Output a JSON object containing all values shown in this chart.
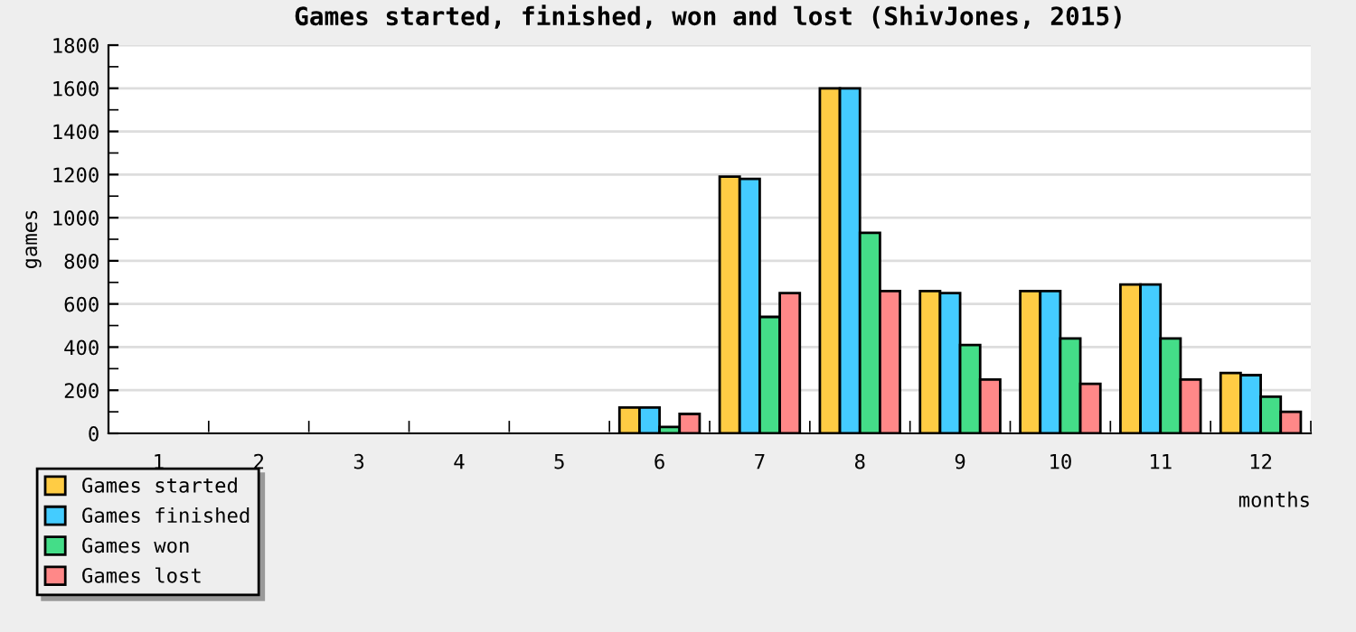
{
  "chart_data": {
    "type": "bar",
    "title": "Games started, finished, won and lost (ShivJones, 2015)",
    "xlabel": "months",
    "ylabel": "games",
    "categories": [
      "1",
      "2",
      "3",
      "4",
      "5",
      "6",
      "7",
      "8",
      "9",
      "10",
      "11",
      "12"
    ],
    "series": [
      {
        "name": "Games started",
        "color": "#ffcc44",
        "values": [
          null,
          null,
          null,
          null,
          null,
          120,
          1190,
          1600,
          660,
          660,
          690,
          280
        ]
      },
      {
        "name": "Games finished",
        "color": "#44ccff",
        "values": [
          null,
          null,
          null,
          null,
          null,
          120,
          1180,
          1600,
          650,
          660,
          690,
          270
        ]
      },
      {
        "name": "Games won",
        "color": "#44dd88",
        "values": [
          null,
          null,
          null,
          null,
          null,
          30,
          540,
          930,
          410,
          440,
          440,
          170
        ]
      },
      {
        "name": "Games lost",
        "color": "#ff8888",
        "values": [
          null,
          null,
          null,
          null,
          null,
          90,
          650,
          660,
          250,
          230,
          250,
          100
        ]
      }
    ],
    "ylim": [
      0,
      1800
    ],
    "yticks": [
      0,
      200,
      400,
      600,
      800,
      1000,
      1200,
      1400,
      1600,
      1800
    ],
    "grid": "y",
    "legend": "bottom left"
  }
}
